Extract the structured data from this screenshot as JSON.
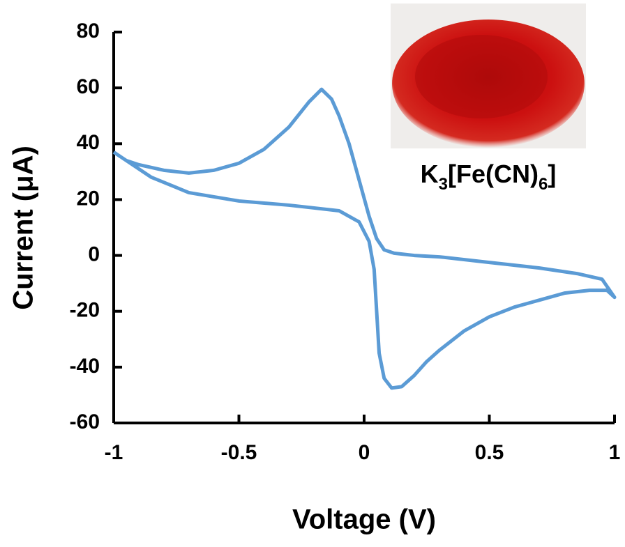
{
  "chart_data": {
    "type": "line",
    "x_label": "Voltage (V)",
    "y_label": "Current (μA)",
    "inset_label": [
      "K",
      "3",
      "[Fe(CN)",
      "6",
      "]"
    ],
    "x": [
      -1,
      -0.95,
      -0.9,
      -0.8,
      -0.7,
      -0.6,
      -0.5,
      -0.4,
      -0.3,
      -0.22,
      -0.17,
      -0.13,
      -0.1,
      -0.06,
      -0.02,
      0.02,
      0.05,
      0.08,
      0.12,
      0.2,
      0.3,
      0.5,
      0.7,
      0.85,
      0.95,
      1,
      0.97,
      0.9,
      0.8,
      0.7,
      0.6,
      0.5,
      0.4,
      0.3,
      0.25,
      0.2,
      0.15,
      0.11,
      0.08,
      0.06,
      0.05,
      0.04,
      0.02,
      -0.02,
      -0.1,
      -0.2,
      -0.3,
      -0.5,
      -0.7,
      -0.85,
      -0.95,
      -1
    ],
    "series": [
      {
        "color": "#5b9bd5",
        "values": [
          37,
          34,
          32.5,
          30.5,
          29.5,
          30.5,
          33,
          38,
          46,
          55,
          59.5,
          56,
          50,
          40,
          27,
          14,
          6,
          2,
          0.8,
          0,
          -0.5,
          -2.5,
          -4.5,
          -6.5,
          -8.5,
          -15,
          -12.5,
          -12.5,
          -13.5,
          -16,
          -18.5,
          -22,
          -27,
          -34,
          -38,
          -43,
          -47,
          -47.5,
          -44,
          -35,
          -20,
          -5,
          5,
          12,
          16,
          17,
          18,
          19.5,
          22.5,
          28,
          34,
          37
        ]
      }
    ],
    "xlim": [
      -1,
      1
    ],
    "xticks": [
      -1,
      -0.5,
      0,
      0.5,
      1
    ],
    "ylim": [
      -60,
      80
    ],
    "yticks": [
      -60,
      -40,
      -20,
      0,
      20,
      40,
      60,
      80
    ],
    "grid": false
  }
}
